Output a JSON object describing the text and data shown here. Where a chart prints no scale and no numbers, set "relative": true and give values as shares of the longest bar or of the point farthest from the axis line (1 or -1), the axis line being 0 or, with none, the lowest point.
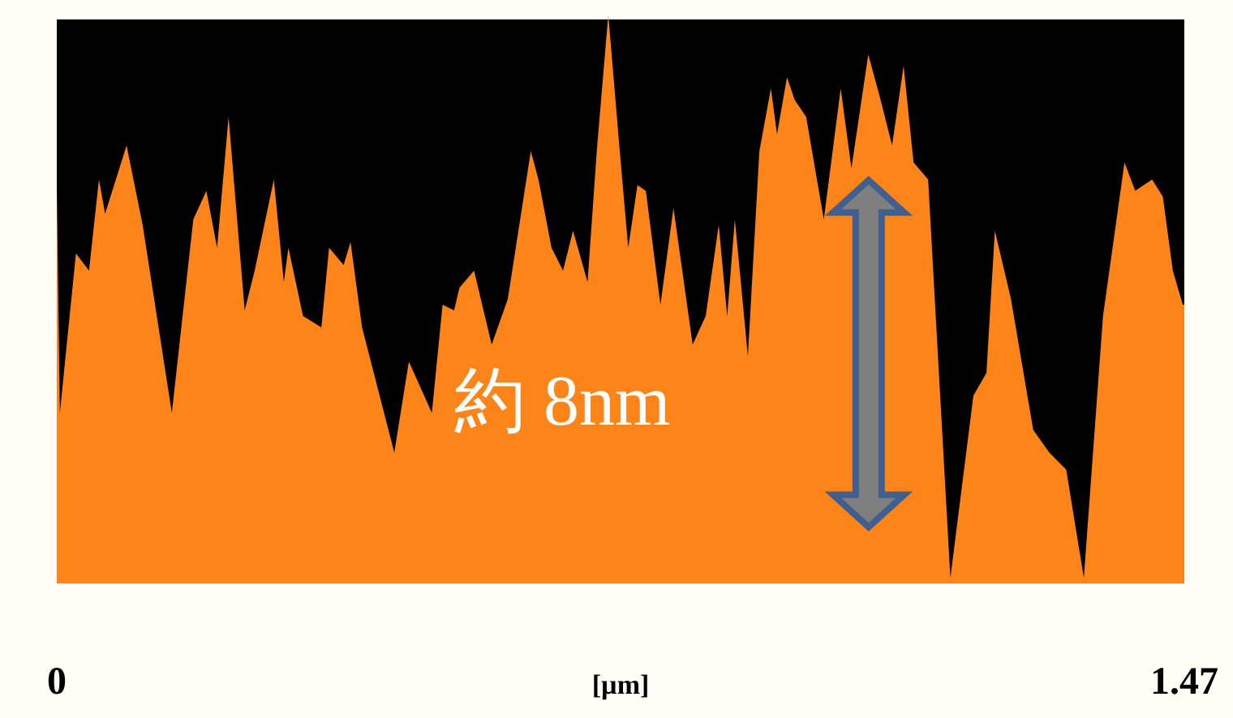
{
  "chart_data": {
    "type": "area",
    "relative": true,
    "xlabel": "[µm]",
    "color": "#fd8418",
    "xlim": [
      0,
      1.47
    ],
    "xticks": [
      0,
      1.47
    ],
    "annotations": [
      "約 8nm"
    ],
    "x": [
      0,
      0.004,
      0.025,
      0.042,
      0.055,
      0.063,
      0.091,
      0.112,
      0.15,
      0.178,
      0.195,
      0.209,
      0.224,
      0.245,
      0.258,
      0.283,
      0.296,
      0.302,
      0.321,
      0.345,
      0.355,
      0.374,
      0.383,
      0.398,
      0.44,
      0.459,
      0.489,
      0.503,
      0.518,
      0.525,
      0.544,
      0.567,
      0.588,
      0.618,
      0.628,
      0.645,
      0.66,
      0.673,
      0.692,
      0.704,
      0.719,
      0.734,
      0.745,
      0.757,
      0.768,
      0.787,
      0.804,
      0.829,
      0.846,
      0.863,
      0.874,
      0.884,
      0.901,
      0.916,
      0.931,
      0.939,
      0.952,
      0.962,
      0.977,
      1.0,
      1.022,
      1.036,
      1.058,
      1.074,
      1.089,
      1.104,
      1.117,
      1.136,
      1.148,
      1.165,
      1.195,
      1.212,
      1.223,
      1.244,
      1.273,
      1.294,
      1.316,
      1.339,
      1.364,
      1.392,
      1.406,
      1.428,
      1.442,
      1.455,
      1.468
    ],
    "values": [
      0.7,
      0.3,
      0.58,
      0.55,
      0.71,
      0.65,
      0.77,
      0.63,
      0.3,
      0.64,
      0.69,
      0.59,
      0.82,
      0.48,
      0.55,
      0.71,
      0.53,
      0.59,
      0.47,
      0.45,
      0.59,
      0.56,
      0.6,
      0.45,
      0.23,
      0.39,
      0.3,
      0.49,
      0.48,
      0.52,
      0.55,
      0.42,
      0.5,
      0.76,
      0.71,
      0.59,
      0.55,
      0.62,
      0.53,
      0.76,
      1.0,
      0.76,
      0.59,
      0.7,
      0.69,
      0.49,
      0.66,
      0.42,
      0.47,
      0.63,
      0.47,
      0.64,
      0.4,
      0.76,
      0.87,
      0.79,
      0.89,
      0.85,
      0.82,
      0.64,
      0.87,
      0.73,
      0.93,
      0.85,
      0.77,
      0.91,
      0.74,
      0.71,
      0.42,
      0.01,
      0.33,
      0.37,
      0.62,
      0.5,
      0.27,
      0.23,
      0.2,
      0.01,
      0.47,
      0.74,
      0.69,
      0.71,
      0.68,
      0.55,
      0.49
    ]
  }
}
